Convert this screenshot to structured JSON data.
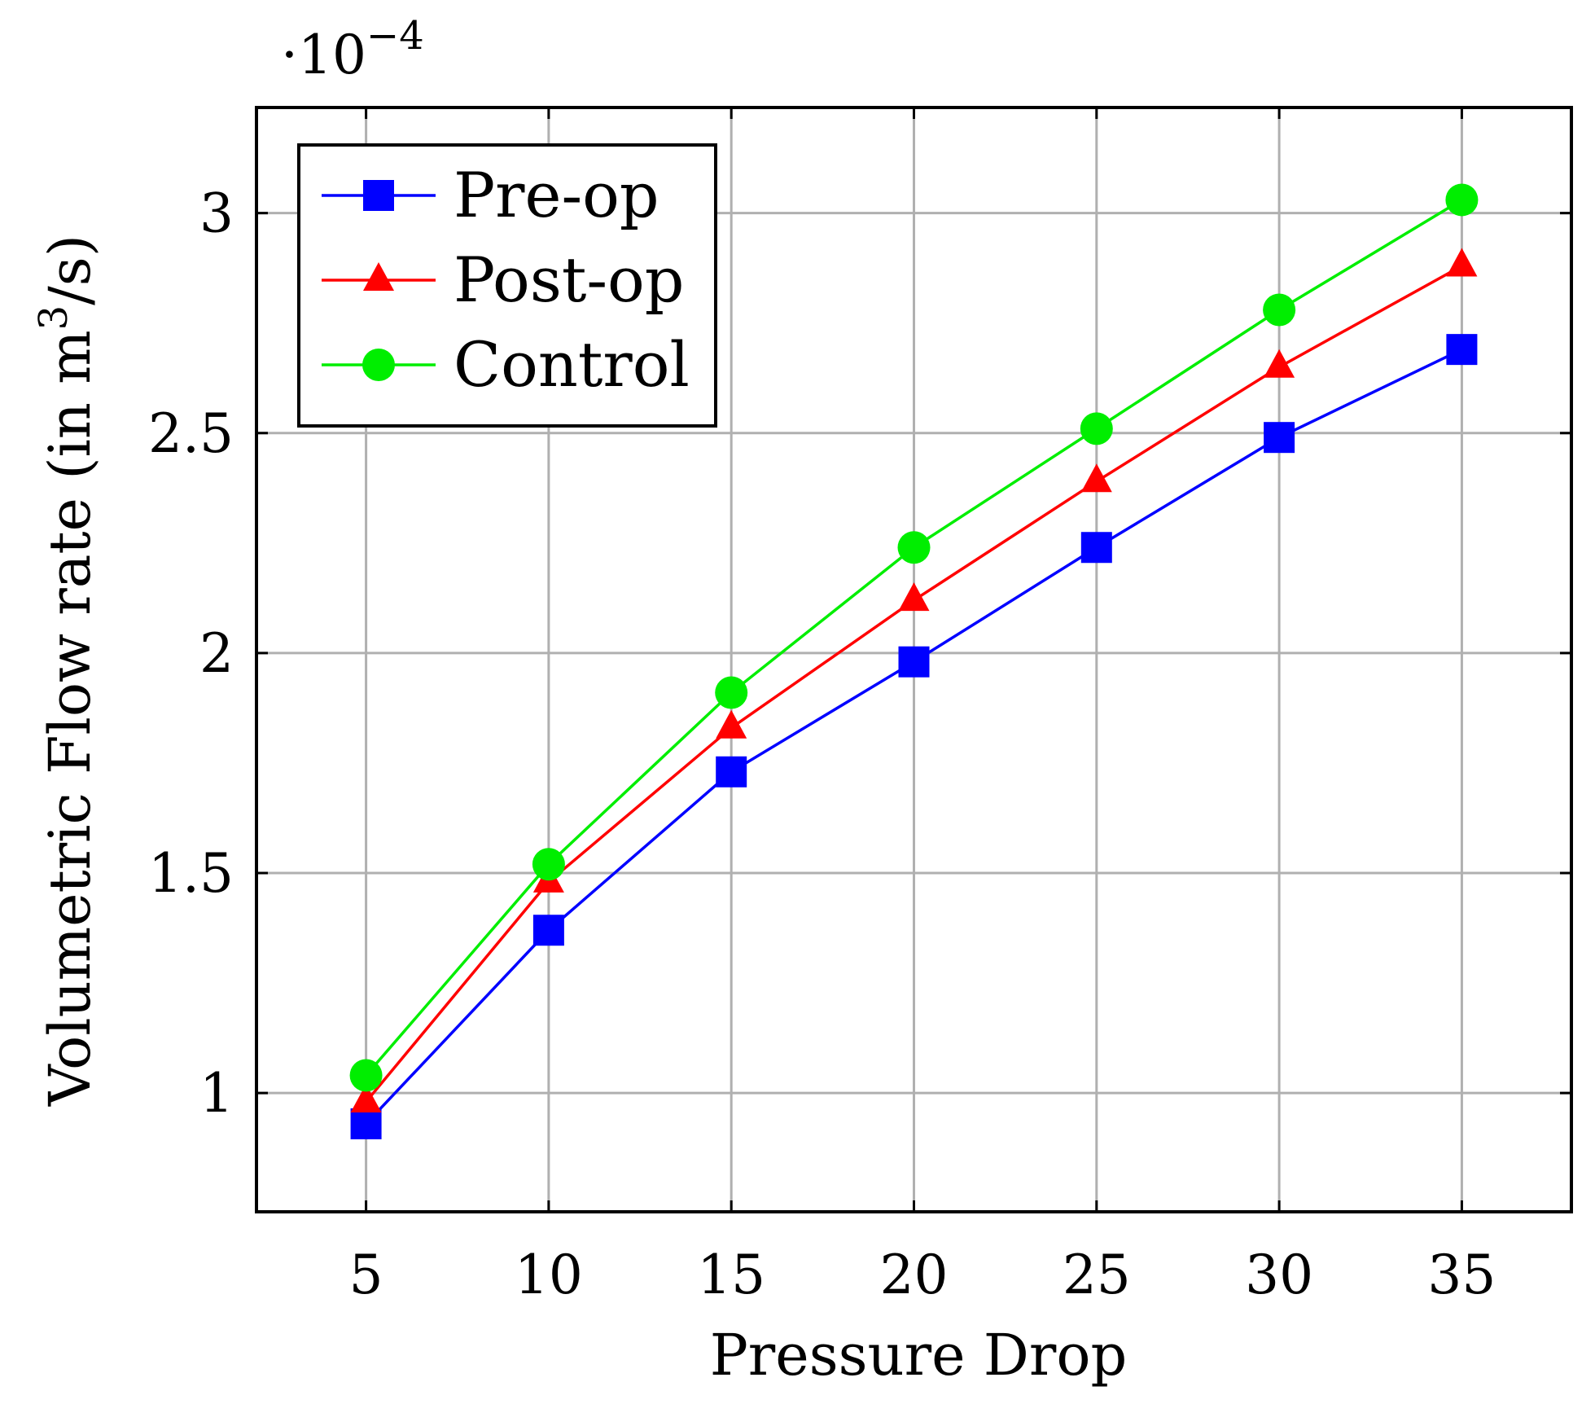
{
  "chart_data": {
    "type": "line",
    "xlabel": "Pressure Drop",
    "ylabel_main": "Volumetric Flow rate (in m",
    "ylabel_sup": "3",
    "ylabel_tail": "/s)",
    "y_scale_prefix": "·10",
    "y_scale_exponent": "−4",
    "x": [
      5,
      10,
      15,
      20,
      25,
      30,
      35
    ],
    "x_tick_labels": [
      "5",
      "10",
      "15",
      "20",
      "25",
      "30",
      "35"
    ],
    "y_ticks": [
      1,
      1.5,
      2,
      2.5,
      3
    ],
    "y_tick_labels": [
      "1",
      "1.5",
      "2",
      "2.5",
      "3"
    ],
    "xlim": [
      2,
      38
    ],
    "ylim": [
      0.73,
      3.24
    ],
    "grid": true,
    "legend_position": "top-left",
    "series": [
      {
        "name": "Pre-op",
        "color": "#0000ff",
        "marker": "square",
        "values": [
          0.93,
          1.37,
          1.73,
          1.98,
          2.24,
          2.49,
          2.69
        ]
      },
      {
        "name": "Post-op",
        "color": "#ff0000",
        "marker": "triangle",
        "values": [
          0.98,
          1.48,
          1.83,
          2.12,
          2.39,
          2.65,
          2.88
        ]
      },
      {
        "name": "Control",
        "color": "#00ee00",
        "marker": "circle",
        "values": [
          1.04,
          1.52,
          1.91,
          2.24,
          2.51,
          2.78,
          3.03
        ]
      }
    ]
  }
}
